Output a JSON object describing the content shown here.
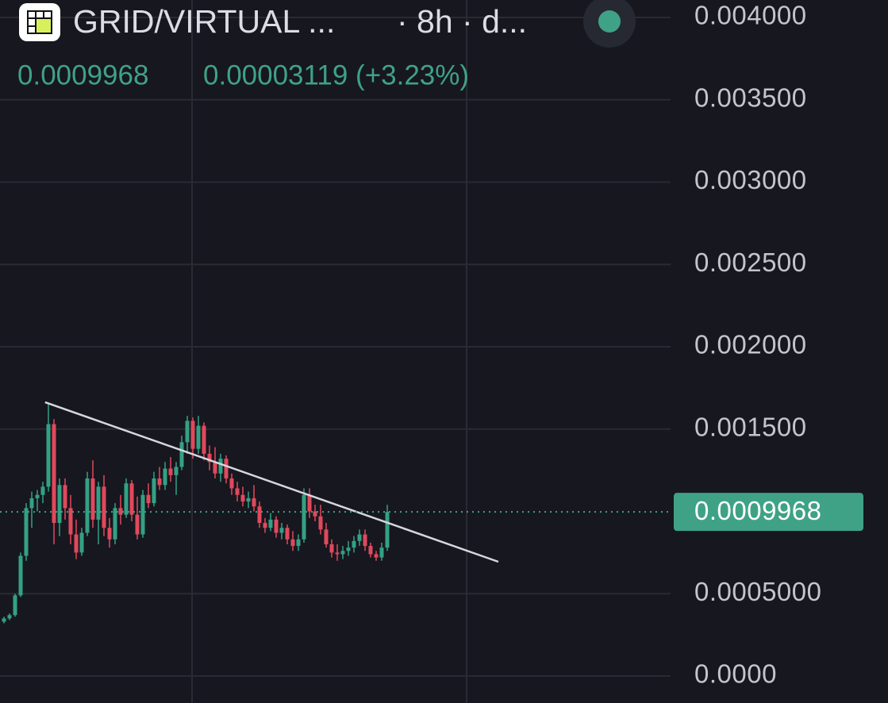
{
  "header": {
    "symbol": "GRID/VIRTUAL ...",
    "interval": "· 8h · d...",
    "price": "0.0009968",
    "change": "0.00003119 (+3.23%)"
  },
  "chart_data": {
    "type": "candlestick",
    "up_color": "#33a184",
    "down_color": "#e0495c",
    "open": [
      0.00033,
      0.00035,
      0.00037,
      0.00049,
      0.00073,
      0.00102,
      0.00108,
      0.0011,
      0.00115,
      0.00153,
      0.00093,
      0.00116,
      0.00102,
      0.00086,
      0.00075,
      0.00087,
      0.0012,
      0.00095,
      0.00115,
      0.0009,
      0.00083,
      0.00102,
      0.00098,
      0.00117,
      0.00098,
      0.00086,
      0.0011,
      0.00105,
      0.0012,
      0.00116,
      0.00126,
      0.00122,
      0.00127,
      0.00142,
      0.00155,
      0.00138,
      0.00152,
      0.00135,
      0.0013,
      0.00123,
      0.00132,
      0.0012,
      0.00114,
      0.0011,
      0.00106,
      0.00108,
      0.00103,
      0.00093,
      0.0009,
      0.00095,
      0.00087,
      0.0009,
      0.00083,
      0.00079,
      0.00083,
      0.0011,
      0.001,
      0.00097,
      0.00089,
      0.0008,
      0.00075,
      0.00074,
      0.00076,
      0.00078,
      0.00082,
      0.00086,
      0.00079,
      0.00074,
      0.00072,
      0.00078
    ],
    "high": [
      0.00036,
      0.00038,
      0.0005,
      0.00075,
      0.00105,
      0.00112,
      0.00113,
      0.00118,
      0.00166,
      0.00156,
      0.0012,
      0.0012,
      0.0011,
      0.00095,
      0.0009,
      0.00124,
      0.00131,
      0.00118,
      0.00122,
      0.00096,
      0.00105,
      0.0011,
      0.0012,
      0.00119,
      0.00109,
      0.00113,
      0.00117,
      0.00124,
      0.00127,
      0.0013,
      0.00133,
      0.0013,
      0.00146,
      0.00158,
      0.00157,
      0.00158,
      0.00154,
      0.0014,
      0.00139,
      0.00135,
      0.00134,
      0.00123,
      0.00118,
      0.00115,
      0.00112,
      0.00116,
      0.00106,
      0.00096,
      0.00099,
      0.00097,
      0.00093,
      0.00092,
      0.00088,
      0.00086,
      0.00114,
      0.00114,
      0.00104,
      0.00104,
      0.00093,
      0.00083,
      0.0008,
      0.00079,
      0.00082,
      0.00085,
      0.00089,
      0.00089,
      0.00081,
      0.00076,
      0.00081,
      0.00104
    ],
    "low": [
      0.00032,
      0.00034,
      0.00036,
      0.00048,
      0.0007,
      0.0009,
      0.001,
      0.00105,
      0.00112,
      0.0008,
      0.00085,
      0.00095,
      0.0008,
      0.00071,
      0.00073,
      0.00085,
      0.0009,
      0.0008,
      0.00085,
      0.00078,
      0.0008,
      0.00092,
      0.00096,
      0.00094,
      0.00083,
      0.00084,
      0.00102,
      0.00103,
      0.00113,
      0.00113,
      0.00118,
      0.0011,
      0.00125,
      0.00135,
      0.00132,
      0.00135,
      0.00131,
      0.00125,
      0.0012,
      0.00118,
      0.00117,
      0.0011,
      0.00106,
      0.00103,
      0.00102,
      0.001,
      0.0009,
      0.00087,
      0.00088,
      0.00084,
      0.00083,
      0.0008,
      0.00076,
      0.00076,
      0.00081,
      0.00096,
      0.00094,
      0.00086,
      0.00078,
      0.00072,
      0.0007,
      0.00071,
      0.00073,
      0.00075,
      0.00079,
      0.00076,
      0.00072,
      0.0007,
      0.0007,
      0.00076
    ],
    "close": [
      0.00035,
      0.00037,
      0.00049,
      0.00073,
      0.00102,
      0.00108,
      0.0011,
      0.00115,
      0.00153,
      0.00093,
      0.00116,
      0.00102,
      0.00086,
      0.00075,
      0.00087,
      0.0012,
      0.00095,
      0.00115,
      0.0009,
      0.00083,
      0.00102,
      0.00098,
      0.00117,
      0.00098,
      0.00086,
      0.0011,
      0.00105,
      0.0012,
      0.00116,
      0.00126,
      0.00122,
      0.00127,
      0.00142,
      0.00155,
      0.00138,
      0.00152,
      0.00135,
      0.0013,
      0.00123,
      0.00132,
      0.0012,
      0.00114,
      0.0011,
      0.00106,
      0.00108,
      0.00103,
      0.00093,
      0.0009,
      0.00095,
      0.00087,
      0.0009,
      0.00083,
      0.00079,
      0.00083,
      0.0011,
      0.001,
      0.00097,
      0.00089,
      0.0008,
      0.00075,
      0.00074,
      0.00076,
      0.00078,
      0.00082,
      0.00086,
      0.00079,
      0.00074,
      0.00072,
      0.00078,
      0.0009968
    ],
    "ylim": [
      0,
      0.004
    ],
    "yticks": [
      {
        "value": 0,
        "label": "0.0000"
      },
      {
        "value": 0.0005,
        "label": "0.0005000"
      },
      {
        "value": 0.0015,
        "label": "0.001500"
      },
      {
        "value": 0.002,
        "label": "0.002000"
      },
      {
        "value": 0.0025,
        "label": "0.002500"
      },
      {
        "value": 0.003,
        "label": "0.003000"
      },
      {
        "value": 0.0035,
        "label": "0.003500"
      },
      {
        "value": 0.004,
        "label": "0.004000"
      }
    ],
    "last_price": {
      "value": 0.0009968,
      "label": "0.0009968"
    },
    "trendline": {
      "x": [
        7.4,
        89
      ],
      "y": [
        0.001663,
        0.000694
      ]
    },
    "grid": true
  }
}
